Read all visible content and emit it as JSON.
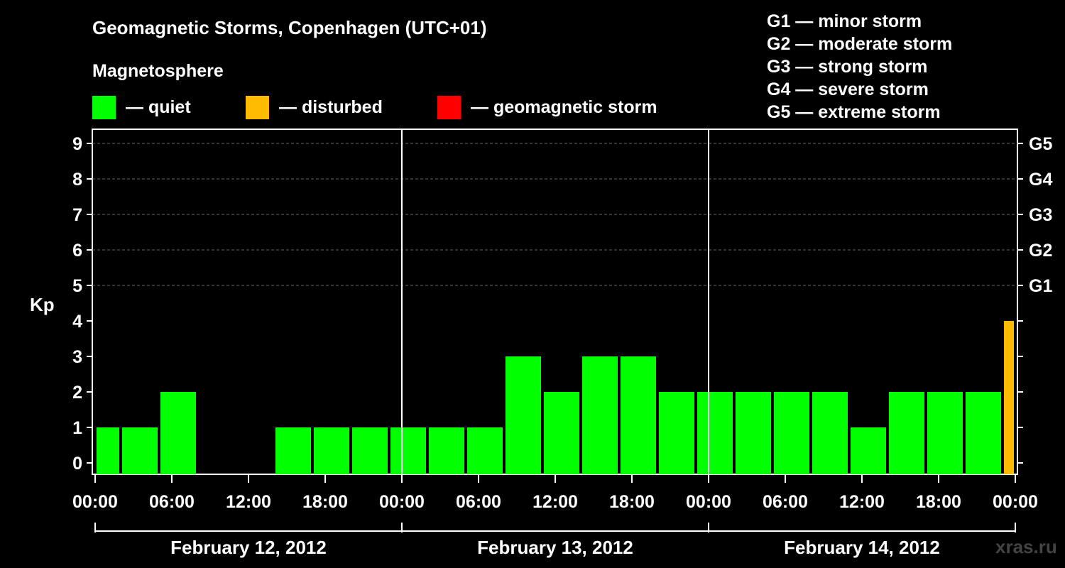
{
  "chart_data": {
    "type": "bar",
    "title": "Geomagnetic Storms, Copenhagen (UTC+01)",
    "subtitle": "Magnetosphere",
    "ylabel": "Kp",
    "ylim": [
      0,
      9
    ],
    "y_ticks": [
      0,
      1,
      2,
      3,
      4,
      5,
      6,
      7,
      8,
      9
    ],
    "right_ticks": [
      {
        "kp": 5,
        "label": "G1"
      },
      {
        "kp": 6,
        "label": "G2"
      },
      {
        "kp": 7,
        "label": "G3"
      },
      {
        "kp": 8,
        "label": "G4"
      },
      {
        "kp": 9,
        "label": "G5"
      }
    ],
    "grid_levels": [
      5,
      6,
      7,
      8,
      9
    ],
    "x_tick_labels": [
      "00:00",
      "06:00",
      "12:00",
      "18:00",
      "00:00",
      "06:00",
      "12:00",
      "18:00",
      "00:00",
      "06:00",
      "12:00",
      "18:00",
      "00:00"
    ],
    "x_tick_hours": [
      0,
      6,
      12,
      18,
      24,
      30,
      36,
      42,
      48,
      54,
      60,
      66,
      72
    ],
    "day_labels": [
      "February 12, 2012",
      "February 13, 2012",
      "February 14, 2012"
    ],
    "bars": [
      {
        "start_hour": 0,
        "end_hour": 2,
        "kp": 1,
        "status": "quiet"
      },
      {
        "start_hour": 2,
        "end_hour": 5,
        "kp": 1,
        "status": "quiet"
      },
      {
        "start_hour": 5,
        "end_hour": 8,
        "kp": 2,
        "status": "quiet"
      },
      {
        "start_hour": 8,
        "end_hour": 11,
        "kp": 0,
        "status": "quiet"
      },
      {
        "start_hour": 11,
        "end_hour": 14,
        "kp": 0,
        "status": "quiet"
      },
      {
        "start_hour": 14,
        "end_hour": 17,
        "kp": 1,
        "status": "quiet"
      },
      {
        "start_hour": 17,
        "end_hour": 20,
        "kp": 1,
        "status": "quiet"
      },
      {
        "start_hour": 20,
        "end_hour": 23,
        "kp": 1,
        "status": "quiet"
      },
      {
        "start_hour": 23,
        "end_hour": 26,
        "kp": 1,
        "status": "quiet"
      },
      {
        "start_hour": 26,
        "end_hour": 29,
        "kp": 1,
        "status": "quiet"
      },
      {
        "start_hour": 29,
        "end_hour": 32,
        "kp": 1,
        "status": "quiet"
      },
      {
        "start_hour": 32,
        "end_hour": 35,
        "kp": 3,
        "status": "quiet"
      },
      {
        "start_hour": 35,
        "end_hour": 38,
        "kp": 2,
        "status": "quiet"
      },
      {
        "start_hour": 38,
        "end_hour": 41,
        "kp": 3,
        "status": "quiet"
      },
      {
        "start_hour": 41,
        "end_hour": 44,
        "kp": 3,
        "status": "quiet"
      },
      {
        "start_hour": 44,
        "end_hour": 47,
        "kp": 2,
        "status": "quiet"
      },
      {
        "start_hour": 47,
        "end_hour": 50,
        "kp": 2,
        "status": "quiet"
      },
      {
        "start_hour": 50,
        "end_hour": 53,
        "kp": 2,
        "status": "quiet"
      },
      {
        "start_hour": 53,
        "end_hour": 56,
        "kp": 2,
        "status": "quiet"
      },
      {
        "start_hour": 56,
        "end_hour": 59,
        "kp": 2,
        "status": "quiet"
      },
      {
        "start_hour": 59,
        "end_hour": 62,
        "kp": 1,
        "status": "quiet"
      },
      {
        "start_hour": 62,
        "end_hour": 65,
        "kp": 2,
        "status": "quiet"
      },
      {
        "start_hour": 65,
        "end_hour": 68,
        "kp": 2,
        "status": "quiet"
      },
      {
        "start_hour": 68,
        "end_hour": 71,
        "kp": 2,
        "status": "quiet"
      },
      {
        "start_hour": 71,
        "end_hour": 72,
        "kp": 4,
        "status": "disturbed"
      }
    ],
    "legend": [
      {
        "key": "quiet",
        "label": "— quiet",
        "color": "#00ff00"
      },
      {
        "key": "disturbed",
        "label": "— disturbed",
        "color": "#ffbb00"
      },
      {
        "key": "storm",
        "label": "— geomagnetic storm",
        "color": "#ff0000"
      }
    ],
    "storm_levels": [
      "G1 — minor storm",
      "G2 — moderate storm",
      "G3 — strong storm",
      "G4 — severe storm",
      "G5 — extreme storm"
    ]
  },
  "watermark": "xras.ru"
}
